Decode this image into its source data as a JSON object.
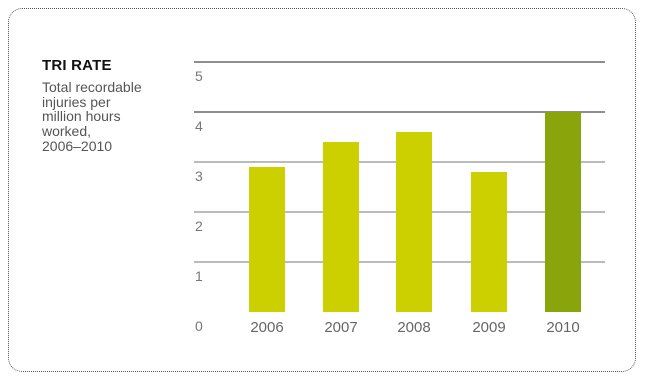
{
  "header": {
    "title": "TRI RATE",
    "subtitle": "Total recordable\ninjuries per\nmillion hours\nworked,\n2006–2010"
  },
  "colors": {
    "bar": "#cdd000",
    "highlight_bar": "#8aa40c",
    "grid": "#4a4a4a",
    "frame": "#555555"
  },
  "chart_data": {
    "type": "bar",
    "title": "TRI RATE",
    "subtitle": "Total recordable injuries per million hours worked, 2006–2010",
    "categories": [
      "2006",
      "2007",
      "2008",
      "2009",
      "2010"
    ],
    "values": [
      2.9,
      3.4,
      3.6,
      2.8,
      4.0
    ],
    "highlight_index": 4,
    "ylim": [
      0,
      5
    ],
    "yticks": [
      0,
      1,
      2,
      3,
      4,
      5
    ],
    "xlabel": "",
    "ylabel": "",
    "grid": true
  }
}
